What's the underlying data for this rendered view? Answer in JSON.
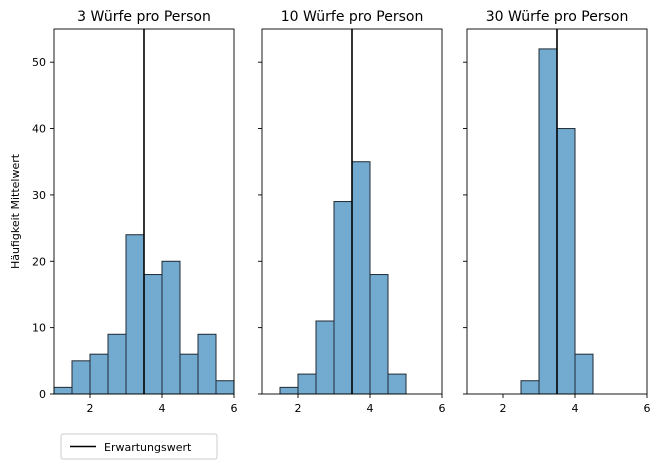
{
  "chart_data": {
    "type": "bar",
    "shared_ylabel": "Häufigkeit Mittelwert",
    "ylim": [
      0,
      55
    ],
    "yticks": [
      0,
      10,
      20,
      30,
      40,
      50
    ],
    "xlim": [
      1,
      6
    ],
    "xticks": [
      2,
      4,
      6
    ],
    "bar_color": "#5b9bc8",
    "bar_edge_color": "#1f2a33",
    "line_color": "#000000",
    "expected_value": 3.5,
    "legend": {
      "label": "Erwartungswert",
      "placement": "lower-left below axes"
    },
    "panels": [
      {
        "title": "3 Würfe pro Person",
        "show_ytick_labels": true,
        "bin_edges": [
          1.0,
          1.5,
          2.0,
          2.5,
          3.0,
          3.5,
          4.0,
          4.5,
          5.0,
          5.5,
          6.0
        ],
        "counts": [
          1,
          5,
          6,
          9,
          24,
          18,
          20,
          6,
          9,
          2
        ]
      },
      {
        "title": "10 Würfe pro Person",
        "show_ytick_labels": false,
        "bin_edges": [
          1.5,
          2.0,
          2.5,
          3.0,
          3.5,
          4.0,
          4.5,
          5.0
        ],
        "counts": [
          1,
          3,
          11,
          29,
          35,
          18,
          3
        ]
      },
      {
        "title": "30 Würfe pro Person",
        "show_ytick_labels": false,
        "bin_edges": [
          2.5,
          3.0,
          3.5,
          4.0,
          4.5
        ],
        "counts": [
          2,
          52,
          40,
          6
        ]
      }
    ]
  }
}
